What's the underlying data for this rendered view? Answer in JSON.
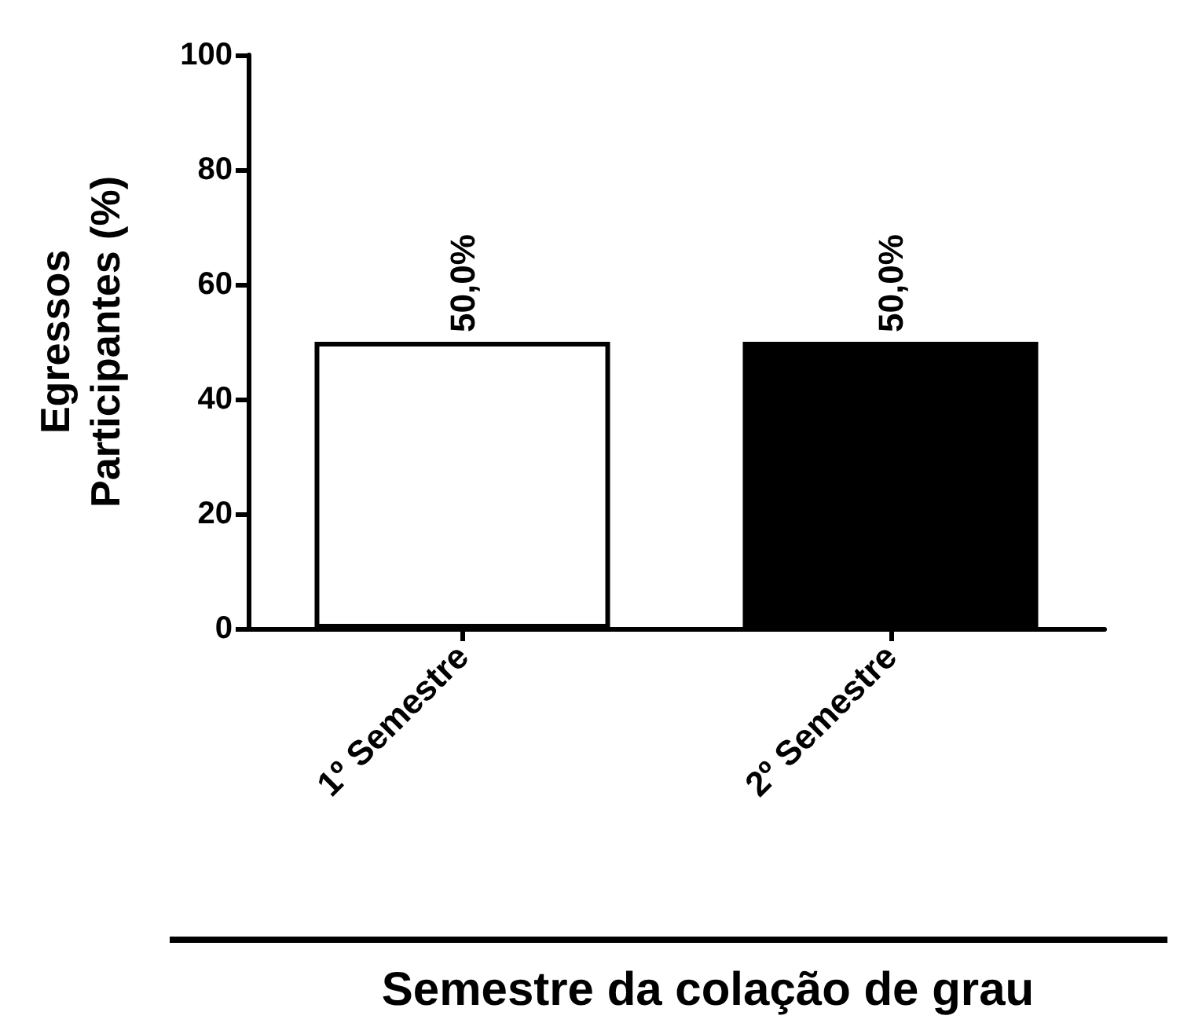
{
  "chart_data": {
    "type": "bar",
    "categories": [
      "1º Semestre",
      "2º Semestre"
    ],
    "values": [
      50,
      50
    ],
    "colors": [
      "#ffffff",
      "#000000"
    ],
    "value_labels": [
      "50,0%",
      "50,0%"
    ],
    "ylabel": "Egressos Participantes (%)",
    "xlabel": "Semestre da colação de grau",
    "ylim": [
      0,
      100
    ],
    "yticks": [
      0,
      20,
      40,
      60,
      80,
      100
    ],
    "grid": false
  }
}
